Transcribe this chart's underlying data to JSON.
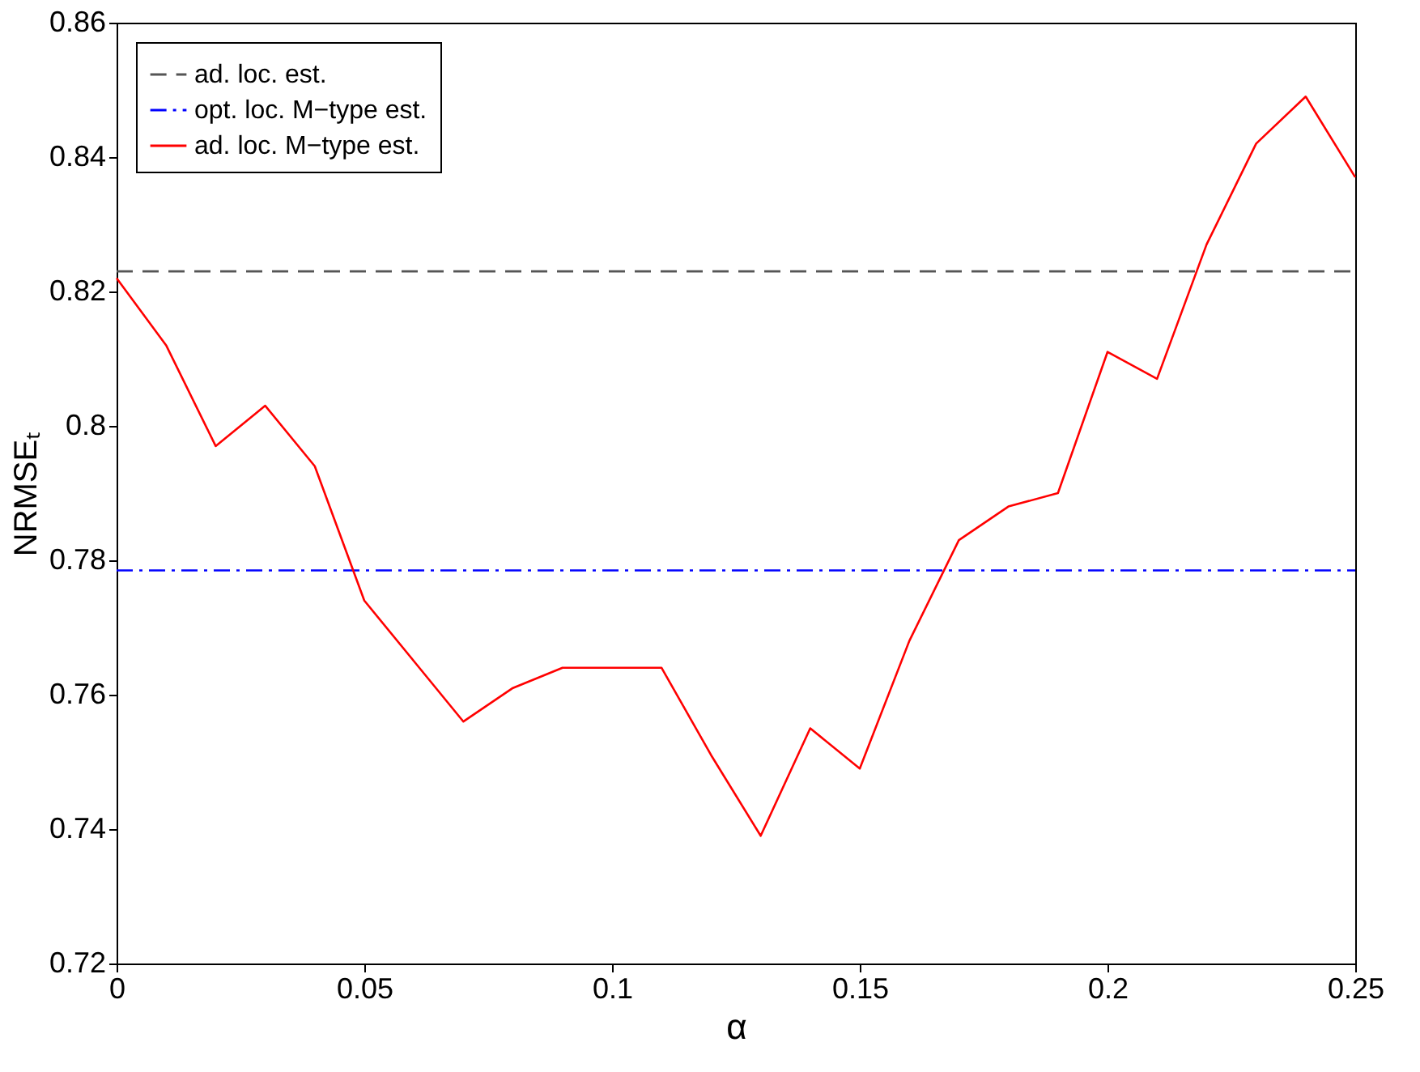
{
  "chart_data": {
    "type": "line",
    "xlabel": "α",
    "ylabel": "NRMSEₜ",
    "x": [
      0,
      0.01,
      0.02,
      0.03,
      0.04,
      0.05,
      0.06,
      0.07,
      0.08,
      0.09,
      0.1,
      0.11,
      0.12,
      0.13,
      0.14,
      0.15,
      0.16,
      0.17,
      0.18,
      0.19,
      0.2,
      0.21,
      0.22,
      0.23,
      0.24,
      0.25
    ],
    "series": [
      {
        "name": "ad. loc. est.",
        "color": "#555555",
        "line_style": "dashed",
        "values": [
          0.823,
          0.823,
          0.823,
          0.823,
          0.823,
          0.823,
          0.823,
          0.823,
          0.823,
          0.823,
          0.823,
          0.823,
          0.823,
          0.823,
          0.823,
          0.823,
          0.823,
          0.823,
          0.823,
          0.823,
          0.823,
          0.823,
          0.823,
          0.823,
          0.823,
          0.823
        ]
      },
      {
        "name": "opt. loc. M−type est.",
        "color": "#0000ff",
        "line_style": "dashdot",
        "values": [
          0.7785,
          0.7785,
          0.7785,
          0.7785,
          0.7785,
          0.7785,
          0.7785,
          0.7785,
          0.7785,
          0.7785,
          0.7785,
          0.7785,
          0.7785,
          0.7785,
          0.7785,
          0.7785,
          0.7785,
          0.7785,
          0.7785,
          0.7785,
          0.7785,
          0.7785,
          0.7785,
          0.7785,
          0.7785,
          0.7785
        ]
      },
      {
        "name": "ad. loc. M−type est.",
        "color": "#ff0000",
        "line_style": "solid",
        "values": [
          0.822,
          0.812,
          0.797,
          0.803,
          0.794,
          0.774,
          0.765,
          0.756,
          0.761,
          0.764,
          0.764,
          0.764,
          0.751,
          0.739,
          0.755,
          0.749,
          0.768,
          0.783,
          0.788,
          0.79,
          0.811,
          0.807,
          0.827,
          0.842,
          0.849,
          0.837
        ]
      }
    ],
    "xlim": [
      0,
      0.25
    ],
    "xticks": [
      0,
      0.05,
      0.1,
      0.15,
      0.2,
      0.25
    ],
    "ylim": [
      0.72,
      0.86
    ],
    "yticks": [
      0.72,
      0.74,
      0.76,
      0.78,
      0.8,
      0.82,
      0.84,
      0.86
    ],
    "grid": false,
    "legend": "top left",
    "marker": "none"
  }
}
